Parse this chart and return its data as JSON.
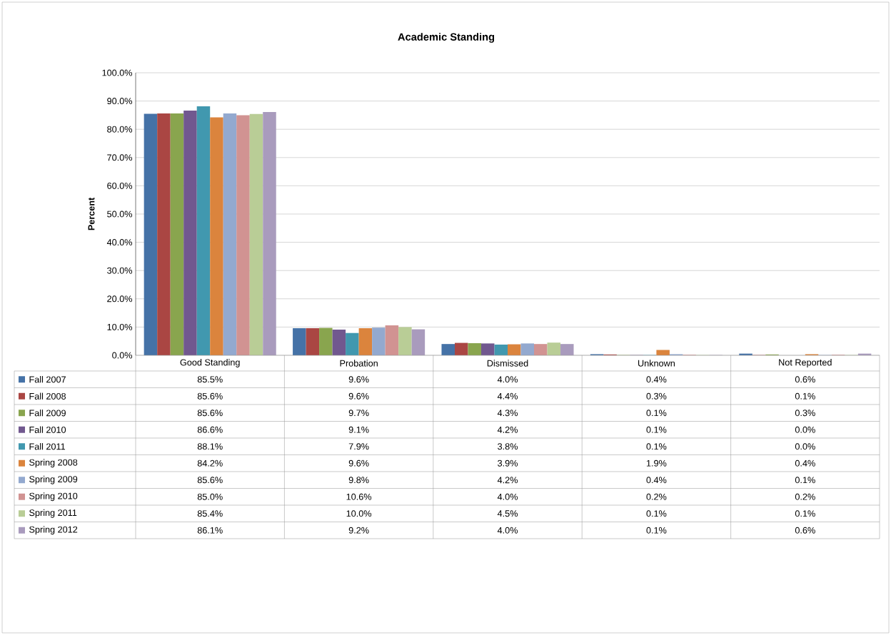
{
  "chart_data": {
    "type": "bar",
    "title": "Academic Standing",
    "ylabel": "Percent",
    "categories": [
      "Good Standing",
      "Probation",
      "Dismissed",
      "Unknown",
      "Not Reported"
    ],
    "series": [
      {
        "name": "Fall 2007",
        "color": "#4572a7",
        "values": [
          85.5,
          9.6,
          4.0,
          0.4,
          0.6
        ],
        "value_labels": [
          "85.5%",
          "9.6%",
          "4.0%",
          "0.4%",
          "0.6%"
        ]
      },
      {
        "name": "Fall 2008",
        "color": "#aa4643",
        "values": [
          85.6,
          9.6,
          4.4,
          0.3,
          0.1
        ],
        "value_labels": [
          "85.6%",
          "9.6%",
          "4.4%",
          "0.3%",
          "0.1%"
        ]
      },
      {
        "name": "Fall 2009",
        "color": "#89a54e",
        "values": [
          85.6,
          9.7,
          4.3,
          0.1,
          0.3
        ],
        "value_labels": [
          "85.6%",
          "9.7%",
          "4.3%",
          "0.1%",
          "0.3%"
        ]
      },
      {
        "name": "Fall 2010",
        "color": "#71588f",
        "values": [
          86.6,
          9.1,
          4.2,
          0.1,
          0.0
        ],
        "value_labels": [
          "86.6%",
          "9.1%",
          "4.2%",
          "0.1%",
          "0.0%"
        ]
      },
      {
        "name": "Fall 2011",
        "color": "#4198af",
        "values": [
          88.1,
          7.9,
          3.8,
          0.1,
          0.0
        ],
        "value_labels": [
          "88.1%",
          "7.9%",
          "3.8%",
          "0.1%",
          "0.0%"
        ]
      },
      {
        "name": "Spring 2008",
        "color": "#db843d",
        "values": [
          84.2,
          9.6,
          3.9,
          1.9,
          0.4
        ],
        "value_labels": [
          "84.2%",
          "9.6%",
          "3.9%",
          "1.9%",
          "0.4%"
        ]
      },
      {
        "name": "Spring 2009",
        "color": "#93a9cf",
        "values": [
          85.6,
          9.8,
          4.2,
          0.4,
          0.1
        ],
        "value_labels": [
          "85.6%",
          "9.8%",
          "4.2%",
          "0.4%",
          "0.1%"
        ]
      },
      {
        "name": "Spring 2010",
        "color": "#d19392",
        "values": [
          85.0,
          10.6,
          4.0,
          0.2,
          0.2
        ],
        "value_labels": [
          "85.0%",
          "10.6%",
          "4.0%",
          "0.2%",
          "0.2%"
        ]
      },
      {
        "name": "Spring 2011",
        "color": "#b9cd96",
        "values": [
          85.4,
          10.0,
          4.5,
          0.1,
          0.1
        ],
        "value_labels": [
          "85.4%",
          "10.0%",
          "4.5%",
          "0.1%",
          "0.1%"
        ]
      },
      {
        "name": "Spring 2012",
        "color": "#a99bbd",
        "values": [
          86.1,
          9.2,
          4.0,
          0.1,
          0.6
        ],
        "value_labels": [
          "86.1%",
          "9.2%",
          "4.0%",
          "0.1%",
          "0.6%"
        ]
      }
    ],
    "ylim": [
      0,
      100
    ],
    "yticks": [
      {
        "value": 0,
        "label": "0.0%"
      },
      {
        "value": 10,
        "label": "10.0%"
      },
      {
        "value": 20,
        "label": "20.0%"
      },
      {
        "value": 30,
        "label": "30.0%"
      },
      {
        "value": 40,
        "label": "40.0%"
      },
      {
        "value": 50,
        "label": "50.0%"
      },
      {
        "value": 60,
        "label": "60.0%"
      },
      {
        "value": 70,
        "label": "70.0%"
      },
      {
        "value": 80,
        "label": "80.0%"
      },
      {
        "value": 90,
        "label": "90.0%"
      },
      {
        "value": 100,
        "label": "100.0%"
      }
    ],
    "grid": "y",
    "legend": "bottom"
  }
}
